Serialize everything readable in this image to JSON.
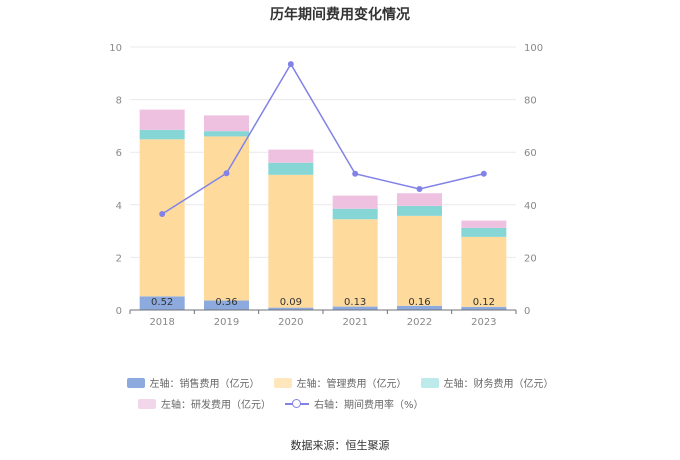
{
  "chart_data": {
    "type": "bar",
    "title": "历年期间费用变化情况",
    "categories": [
      "2018",
      "2019",
      "2020",
      "2021",
      "2022",
      "2023"
    ],
    "stacked": true,
    "series": [
      {
        "name": "左轴：销售费用（亿元）",
        "axis": "left",
        "kind": "bar",
        "color": "#8DAADF",
        "values": [
          0.52,
          0.36,
          0.09,
          0.13,
          0.16,
          0.12
        ],
        "labels": [
          "0.52",
          "0.36",
          "0.09",
          "0.13",
          "0.16",
          "0.12"
        ]
      },
      {
        "name": "左轴：管理费用（亿元）",
        "axis": "left",
        "kind": "bar",
        "color": "#FFDA9D",
        "values": [
          5.97,
          6.24,
          5.05,
          3.32,
          3.42,
          2.66
        ]
      },
      {
        "name": "左轴：财务费用（亿元）",
        "axis": "left",
        "kind": "bar",
        "color": "#86D6D6",
        "values": [
          0.36,
          0.2,
          0.46,
          0.4,
          0.38,
          0.34
        ]
      },
      {
        "name": "左轴：研发费用（亿元）",
        "axis": "left",
        "kind": "bar",
        "color": "#EEC1E0",
        "values": [
          0.77,
          0.6,
          0.5,
          0.5,
          0.48,
          0.28
        ]
      },
      {
        "name": "右轴：期间费用率（%）",
        "axis": "right",
        "kind": "line",
        "color": "#8082E8",
        "values": [
          36.5,
          52.0,
          93.5,
          51.8,
          46.0,
          51.8
        ]
      }
    ],
    "y_left": {
      "min": 0,
      "max": 10,
      "ticks": [
        0,
        2,
        4,
        6,
        8,
        10
      ]
    },
    "y_right": {
      "min": 0,
      "max": 100,
      "ticks": [
        0,
        20,
        40,
        60,
        80,
        100
      ]
    },
    "grid": true,
    "legend_position": "bottom"
  },
  "source": "数据来源：恒生聚源"
}
